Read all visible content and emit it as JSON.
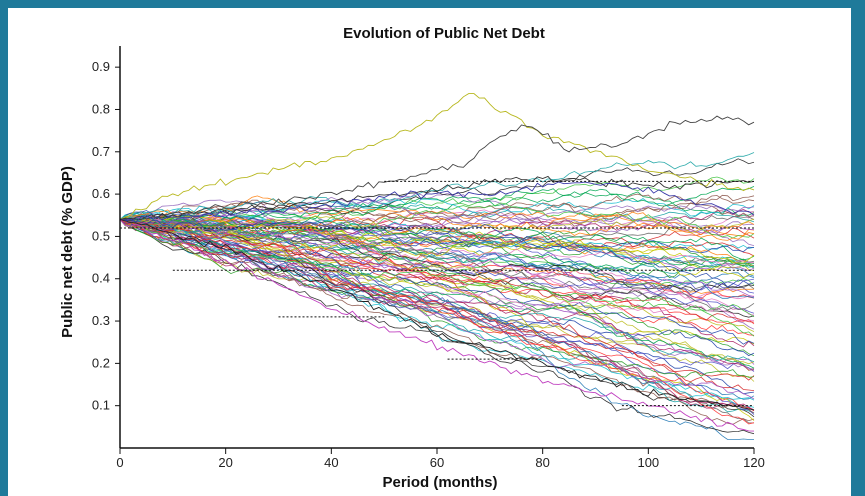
{
  "chart_data": {
    "type": "line",
    "title": "Evolution of Public Net Debt",
    "xlabel": "Period (months)",
    "ylabel": "Public net debt (% GDP)",
    "xlim": [
      0,
      120
    ],
    "ylim": [
      0,
      0.95
    ],
    "x_ticks": [
      "0",
      "20",
      "40",
      "60",
      "80",
      "100",
      "120"
    ],
    "y_ticks": [
      "0.1",
      "0.2",
      "0.3",
      "0.4",
      "0.5",
      "0.6",
      "0.7",
      "0.8",
      "0.9"
    ],
    "x_tick_values": [
      0,
      20,
      40,
      60,
      80,
      100,
      120
    ],
    "y_tick_values": [
      0.1,
      0.2,
      0.3,
      0.4,
      0.5,
      0.6,
      0.7,
      0.8,
      0.9
    ],
    "grid": false,
    "legend": "none",
    "start_value": 0.54,
    "series_count": 100,
    "period_count": 120,
    "x_step": 1,
    "highlighted_paths": [
      {
        "name": "",
        "color": "#b8b820",
        "points": [
          [
            0,
            0.54
          ],
          [
            10,
            0.6
          ],
          [
            20,
            0.63
          ],
          [
            30,
            0.66
          ],
          [
            40,
            0.68
          ],
          [
            50,
            0.73
          ],
          [
            60,
            0.78
          ],
          [
            66,
            0.84
          ],
          [
            72,
            0.8
          ],
          [
            80,
            0.74
          ],
          [
            90,
            0.7
          ],
          [
            100,
            0.66
          ],
          [
            110,
            0.63
          ],
          [
            120,
            0.61
          ]
        ]
      },
      {
        "name": "",
        "color": "#444444",
        "points": [
          [
            0,
            0.54
          ],
          [
            20,
            0.57
          ],
          [
            40,
            0.6
          ],
          [
            55,
            0.64
          ],
          [
            65,
            0.67
          ],
          [
            72,
            0.74
          ],
          [
            78,
            0.76
          ],
          [
            85,
            0.7
          ],
          [
            95,
            0.72
          ],
          [
            105,
            0.77
          ],
          [
            112,
            0.78
          ],
          [
            120,
            0.77
          ]
        ]
      },
      {
        "name": "",
        "color": "#333333",
        "points": [
          [
            0,
            0.54
          ],
          [
            30,
            0.57
          ],
          [
            60,
            0.61
          ],
          [
            75,
            0.64
          ],
          [
            90,
            0.63
          ],
          [
            105,
            0.62
          ],
          [
            120,
            0.63
          ]
        ]
      },
      {
        "name": "",
        "color": "#3a3aa8",
        "points": [
          [
            0,
            0.54
          ],
          [
            30,
            0.56
          ],
          [
            55,
            0.6
          ],
          [
            70,
            0.6
          ],
          [
            85,
            0.63
          ],
          [
            100,
            0.61
          ],
          [
            120,
            0.55
          ]
        ]
      },
      {
        "name": "",
        "color": "#c040c0",
        "points": [
          [
            0,
            0.54
          ],
          [
            20,
            0.44
          ],
          [
            40,
            0.33
          ],
          [
            60,
            0.24
          ],
          [
            80,
            0.16
          ],
          [
            100,
            0.1
          ],
          [
            120,
            0.04
          ]
        ]
      },
      {
        "name": "",
        "color": "#222222",
        "points": [
          [
            0,
            0.54
          ],
          [
            20,
            0.47
          ],
          [
            40,
            0.38
          ],
          [
            60,
            0.27
          ],
          [
            80,
            0.2
          ],
          [
            100,
            0.13
          ],
          [
            120,
            0.09
          ]
        ]
      }
    ],
    "band_colors": [
      "#d62728",
      "#1f77b4",
      "#2ca02c",
      "#9467bd",
      "#17becf",
      "#ff7f0e",
      "#222222",
      "#e377c2",
      "#8c564b",
      "#bcbd22",
      "#00a651",
      "#5050c8",
      "#c8c800",
      "#666666",
      "#ff3333",
      "#1aa3a3",
      "#a050c0",
      "#3ec23e",
      "#2244aa",
      "#aa2266"
    ],
    "dashed_reference_levels": [
      {
        "y": 0.52,
        "x_range": [
          0,
          120
        ]
      },
      {
        "y": 0.42,
        "x_range": [
          10,
          120
        ]
      },
      {
        "y": 0.31,
        "x_range": [
          30,
          50
        ]
      },
      {
        "y": 0.21,
        "x_range": [
          62,
          80
        ]
      },
      {
        "y": 0.1,
        "x_range": [
          95,
          120
        ]
      },
      {
        "y": 0.63,
        "x_range": [
          50,
          120
        ]
      }
    ]
  }
}
